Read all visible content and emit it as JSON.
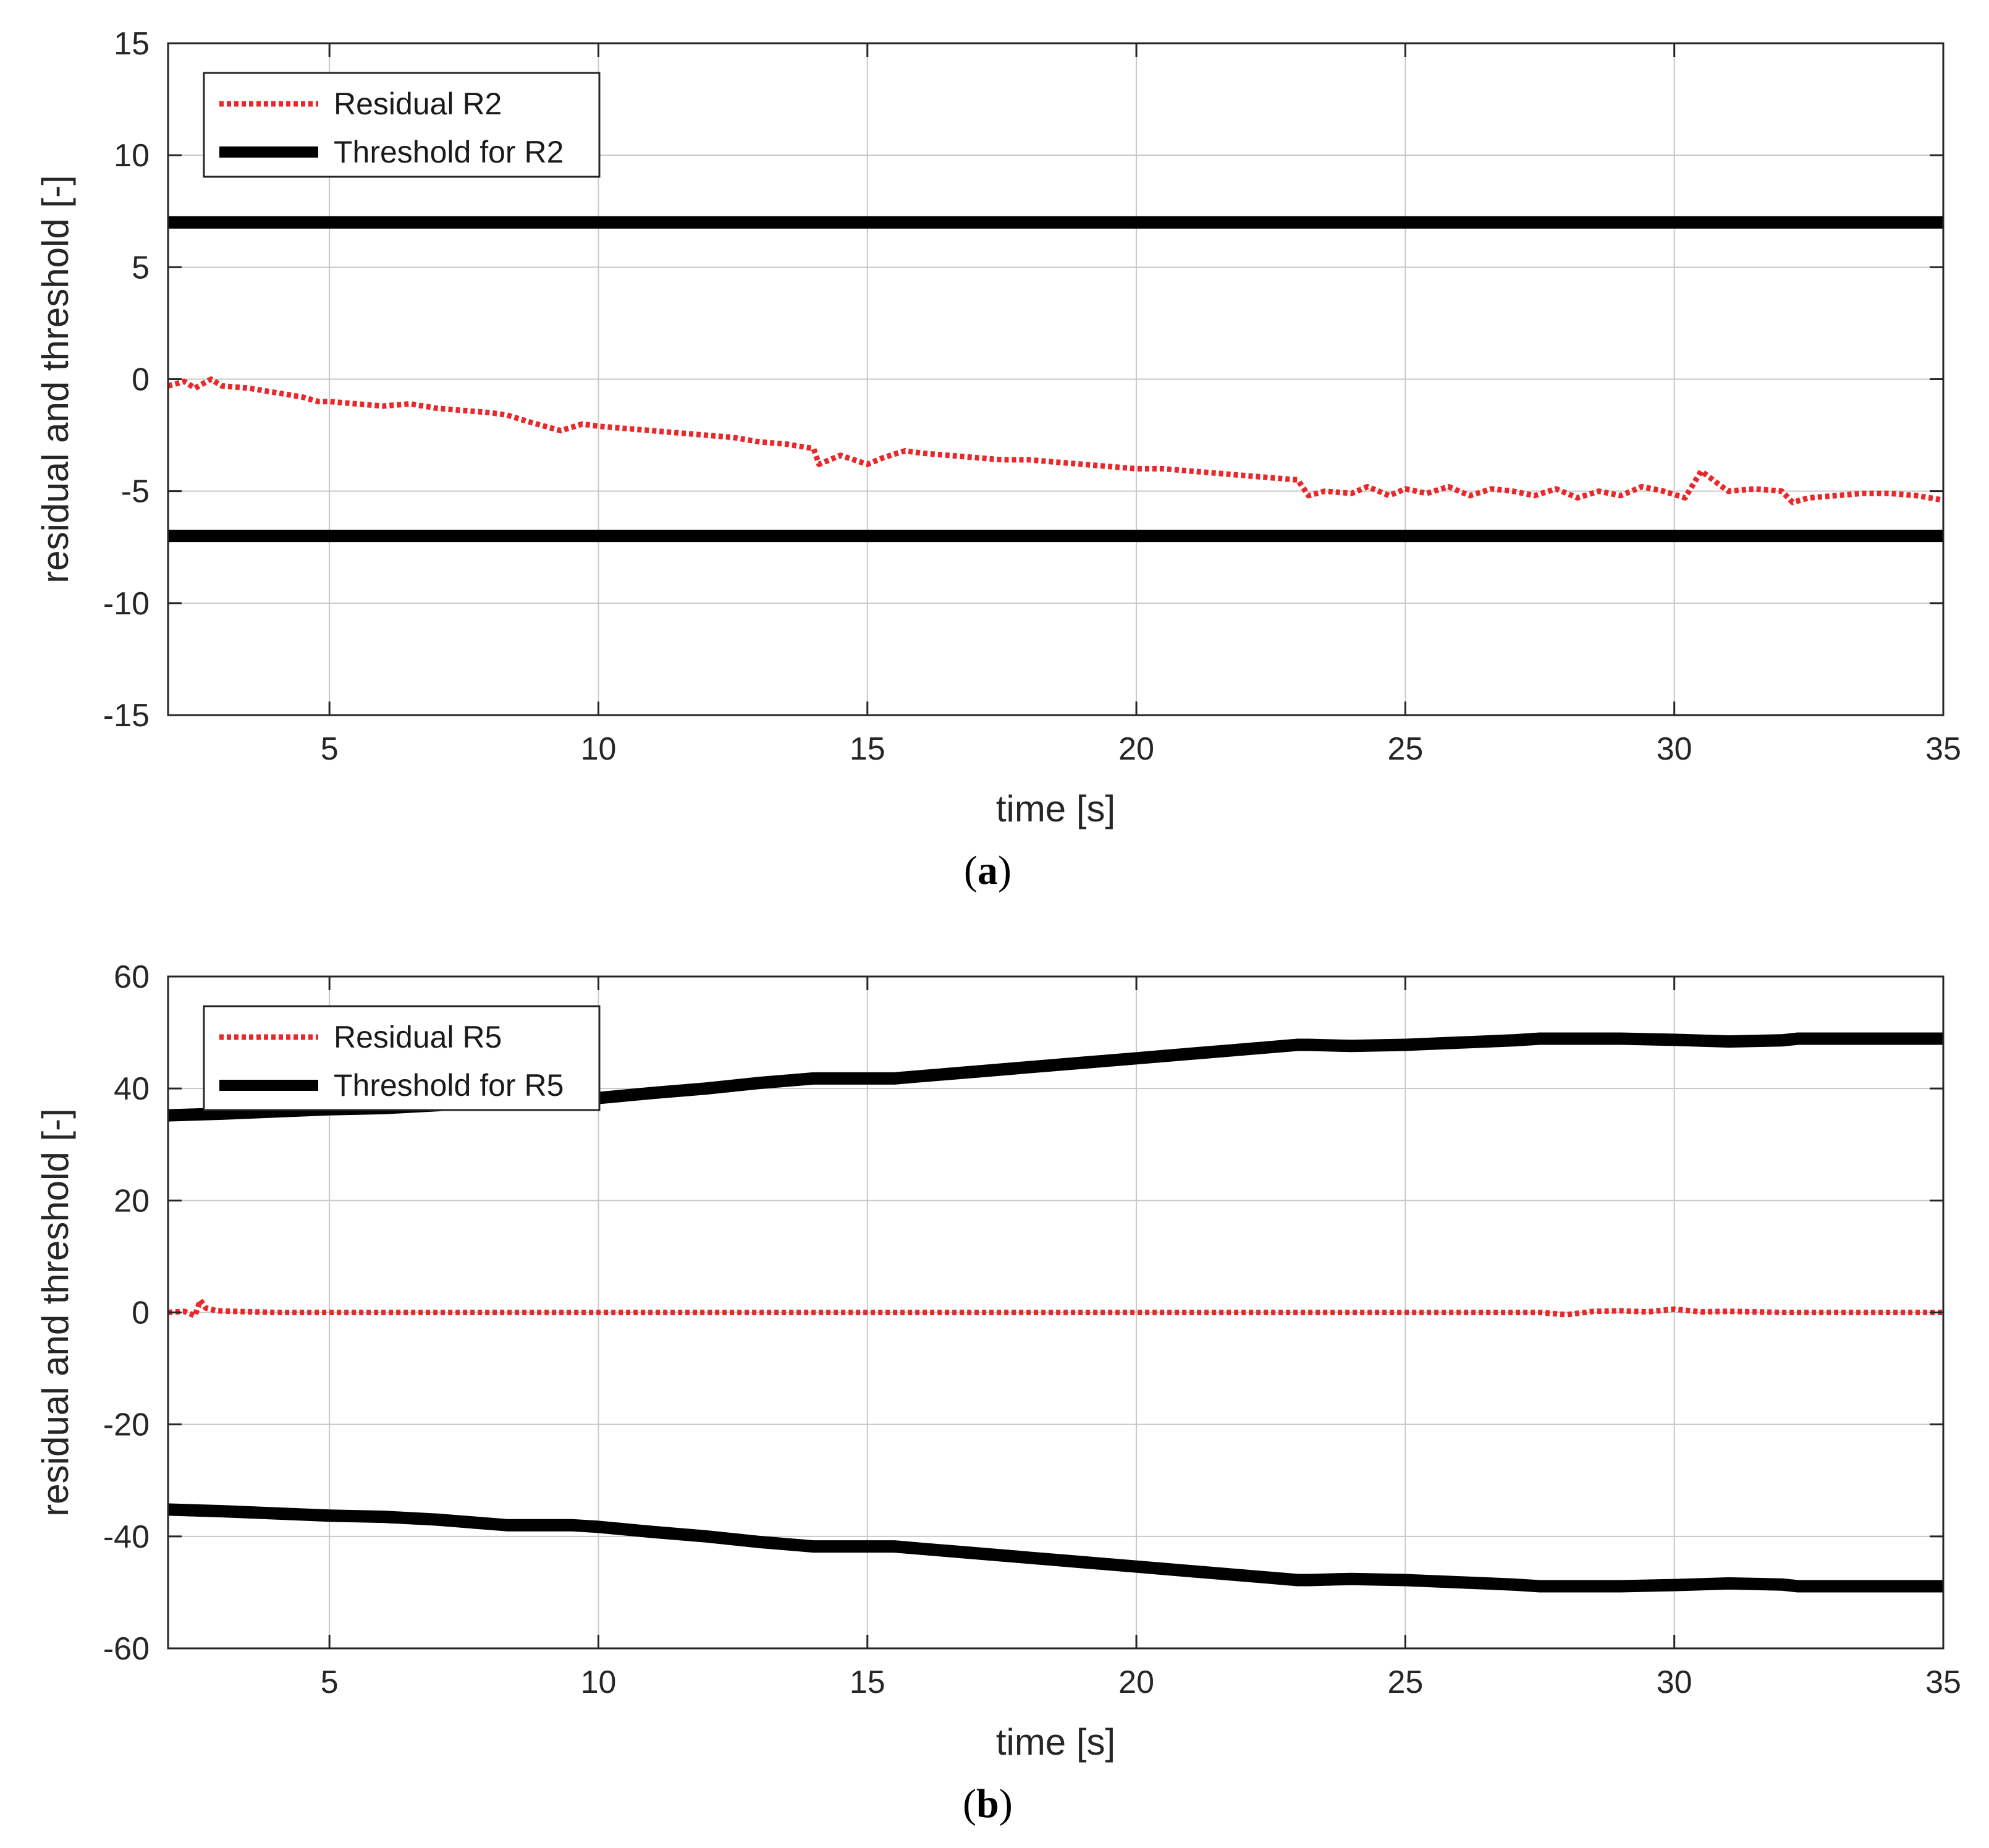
{
  "chart_data": [
    {
      "type": "line",
      "caption_letter": "a",
      "xlabel": "time [s]",
      "ylabel": "residual and threshold [-]",
      "xlim": [
        2,
        35
      ],
      "ylim": [
        -15,
        15
      ],
      "xticks": [
        5,
        10,
        15,
        20,
        25,
        30,
        35
      ],
      "yticks": [
        -15,
        -10,
        -5,
        0,
        5,
        10,
        15
      ],
      "grid": true,
      "legend_position": "top-left",
      "series": [
        {
          "name": "Residual R2",
          "color": "#e8282b",
          "style": "dotted",
          "x": [
            2,
            2.3,
            2.5,
            2.8,
            3.0,
            3.5,
            4.0,
            4.5,
            4.8,
            5.0,
            5.5,
            6.0,
            6.5,
            7.0,
            7.5,
            8.0,
            8.3,
            8.7,
            9.0,
            9.3,
            9.7,
            10.0,
            10.5,
            11.0,
            11.5,
            12.0,
            12.5,
            13.0,
            13.5,
            14.0,
            14.1,
            14.5,
            15.0,
            15.3,
            15.7,
            16.0,
            16.5,
            17.0,
            17.5,
            18.0,
            18.5,
            19.0,
            19.5,
            20.0,
            20.5,
            21.0,
            21.5,
            22.0,
            22.5,
            23.0,
            23.2,
            23.5,
            24.0,
            24.3,
            24.7,
            25.0,
            25.4,
            25.8,
            26.2,
            26.6,
            27.0,
            27.4,
            27.8,
            28.2,
            28.6,
            29.0,
            29.4,
            29.8,
            30.2,
            30.5,
            31.0,
            31.5,
            32.0,
            32.2,
            32.5,
            33.0,
            33.5,
            34.0,
            34.5,
            35.0
          ],
          "y": [
            -0.3,
            -0.1,
            -0.4,
            0.0,
            -0.3,
            -0.4,
            -0.6,
            -0.8,
            -1.0,
            -1.0,
            -1.1,
            -1.2,
            -1.1,
            -1.3,
            -1.4,
            -1.5,
            -1.6,
            -1.9,
            -2.1,
            -2.3,
            -2.0,
            -2.1,
            -2.2,
            -2.3,
            -2.4,
            -2.5,
            -2.6,
            -2.8,
            -2.9,
            -3.1,
            -3.8,
            -3.4,
            -3.8,
            -3.5,
            -3.2,
            -3.3,
            -3.4,
            -3.5,
            -3.6,
            -3.6,
            -3.7,
            -3.8,
            -3.9,
            -4.0,
            -4.0,
            -4.1,
            -4.2,
            -4.3,
            -4.4,
            -4.5,
            -5.2,
            -5.0,
            -5.1,
            -4.8,
            -5.2,
            -4.9,
            -5.1,
            -4.8,
            -5.2,
            -4.9,
            -5.0,
            -5.2,
            -4.9,
            -5.3,
            -5.0,
            -5.2,
            -4.8,
            -5.0,
            -5.3,
            -4.1,
            -5.0,
            -4.9,
            -5.0,
            -5.5,
            -5.3,
            -5.2,
            -5.1,
            -5.1,
            -5.2,
            -5.4
          ]
        },
        {
          "name": "Threshold for R2",
          "color": "#000000",
          "style": "solid",
          "x": [
            2,
            35
          ],
          "y": [
            7,
            7
          ]
        },
        {
          "name": "Threshold for R2",
          "color": "#000000",
          "style": "solid",
          "x": [
            2,
            35
          ],
          "y": [
            -7,
            -7
          ]
        }
      ]
    },
    {
      "type": "line",
      "caption_letter": "b",
      "xlabel": "time [s]",
      "ylabel": "residual and threshold [-]",
      "xlim": [
        2,
        35
      ],
      "ylim": [
        -60,
        60
      ],
      "xticks": [
        5,
        10,
        15,
        20,
        25,
        30,
        35
      ],
      "yticks": [
        -60,
        -40,
        -20,
        0,
        20,
        40,
        60
      ],
      "grid": true,
      "legend_position": "top-left",
      "series": [
        {
          "name": "Residual R5",
          "color": "#e8282b",
          "style": "dotted",
          "x": [
            2,
            2.3,
            2.5,
            2.6,
            2.7,
            2.9,
            3.2,
            4.0,
            6.0,
            10.0,
            15.0,
            20.0,
            25.0,
            27.5,
            28.0,
            28.5,
            29.0,
            29.5,
            30.0,
            30.5,
            31.0,
            32.0,
            35.0
          ],
          "y": [
            0,
            0.2,
            -0.6,
            2.2,
            0.8,
            0.3,
            0.2,
            0,
            0,
            0,
            0,
            0,
            0,
            0,
            -0.4,
            0.2,
            0.3,
            0.1,
            0.6,
            0.1,
            0.2,
            0,
            0
          ]
        },
        {
          "name": "Threshold for R5",
          "color": "#000000",
          "style": "solid",
          "x": [
            2,
            3,
            5,
            6,
            7,
            8.3,
            9.5,
            10,
            11,
            12,
            13,
            14,
            15,
            15.5,
            16,
            17,
            18,
            19,
            20,
            21,
            22,
            23,
            23.2,
            24,
            25,
            26,
            27,
            27.5,
            28,
            29,
            30,
            31,
            32,
            32.3,
            33,
            34,
            35
          ],
          "y": [
            35.2,
            35.5,
            36.3,
            36.5,
            37.0,
            38.0,
            38.0,
            38.3,
            39.2,
            40.0,
            41.0,
            41.8,
            41.8,
            41.8,
            42.2,
            43.0,
            43.8,
            44.6,
            45.4,
            46.2,
            47.0,
            47.8,
            47.8,
            47.6,
            47.8,
            48.2,
            48.6,
            48.9,
            48.9,
            48.9,
            48.7,
            48.4,
            48.6,
            48.9,
            48.9,
            48.9,
            48.9
          ]
        },
        {
          "name": "Threshold for R5",
          "color": "#000000",
          "style": "solid",
          "x": [
            2,
            3,
            5,
            6,
            7,
            8.3,
            9.5,
            10,
            11,
            12,
            13,
            14,
            15,
            15.5,
            16,
            17,
            18,
            19,
            20,
            21,
            22,
            23,
            23.2,
            24,
            25,
            26,
            27,
            27.5,
            28,
            29,
            30,
            31,
            32,
            32.3,
            33,
            34,
            35
          ],
          "y": [
            -35.2,
            -35.5,
            -36.3,
            -36.5,
            -37.0,
            -38.0,
            -38.0,
            -38.3,
            -39.2,
            -40.0,
            -41.0,
            -41.8,
            -41.8,
            -41.8,
            -42.2,
            -43.0,
            -43.8,
            -44.6,
            -45.4,
            -46.2,
            -47.0,
            -47.8,
            -47.8,
            -47.6,
            -47.8,
            -48.2,
            -48.6,
            -48.9,
            -48.9,
            -48.9,
            -48.7,
            -48.4,
            -48.6,
            -48.9,
            -48.9,
            -48.9,
            -48.9
          ]
        }
      ]
    }
  ]
}
